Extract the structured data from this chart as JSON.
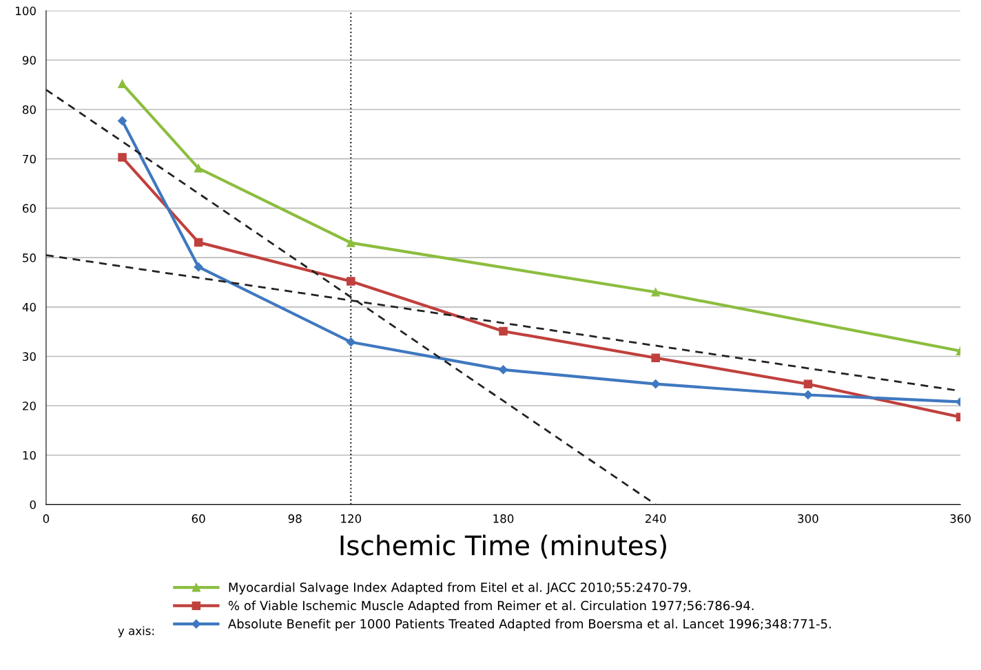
{
  "chart_data": {
    "type": "line",
    "xlabel": "Ischemic Time (minutes)",
    "legend_title": "y axis:",
    "xlim": [
      0,
      360
    ],
    "ylim": [
      0,
      100
    ],
    "xticks": [
      0,
      60,
      98,
      120,
      180,
      240,
      300,
      360
    ],
    "yticks": [
      0,
      10,
      20,
      30,
      40,
      50,
      60,
      70,
      80,
      90,
      100
    ],
    "grid": "y",
    "legend": "bottom",
    "series": [
      {
        "name": "Myocardial Salvage Index Adapted from Eitel et al. JACC 2010;55:2470-79.",
        "color": "#8cbd3f",
        "marker": "triangle",
        "x": [
          30,
          60,
          120,
          240,
          360
        ],
        "values": [
          85.2,
          68.1,
          53,
          43,
          31.1
        ]
      },
      {
        "name": "% of Viable Ischemic Muscle Adapted from Reimer et al. Circulation 1977;56:786-94.",
        "color": "#c0403d",
        "marker": "square",
        "x": [
          30,
          60,
          120,
          180,
          240,
          300,
          360
        ],
        "values": [
          70.3,
          53.1,
          45.2,
          35.1,
          29.7,
          24.4,
          17.7
        ]
      },
      {
        "name": "Absolute Benefit per 1000 Patients Treated Adapted from Boersma et al. Lancet 1996;348:771-5.",
        "color": "#3f78c0",
        "marker": "diamond",
        "x": [
          30,
          60,
          120,
          180,
          240,
          300,
          360
        ],
        "values": [
          77.7,
          48.1,
          32.9,
          27.3,
          24.4,
          22.2,
          20.8
        ]
      },
      {
        "color": "#222222",
        "marker": "none",
        "line_style": "dashed",
        "x": [
          0,
          240
        ],
        "values": [
          84,
          0
        ]
      },
      {
        "color": "#222222",
        "marker": "none",
        "line_style": "dashed",
        "x": [
          0,
          360
        ],
        "values": [
          50.5,
          23
        ]
      }
    ],
    "ref_lines": [
      {
        "axis": "x",
        "value": 120,
        "color": "#222222",
        "line_style": "dotted"
      }
    ]
  }
}
